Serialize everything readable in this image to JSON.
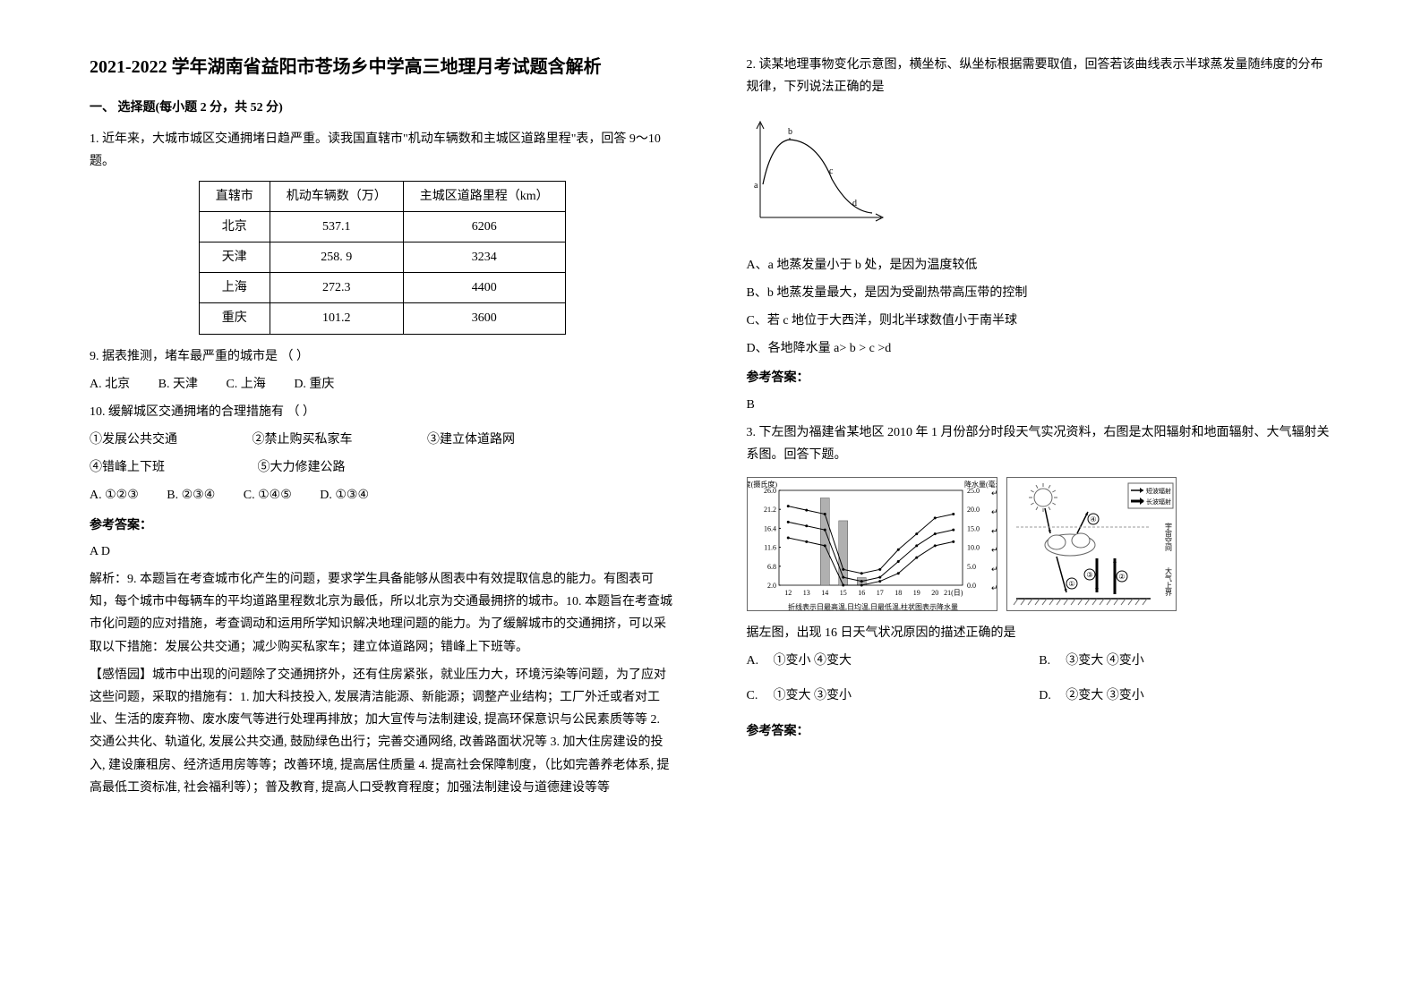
{
  "title": "2021-2022 学年湖南省益阳市苍场乡中学高三地理月考试题含解析",
  "sectionHeading": "一、 选择题(每小题 2 分，共 52 分)",
  "q1": {
    "intro": "1. 近年来，大城市城区交通拥堵日趋严重。读我国直辖市\"机动车辆数和主城区道路里程\"表，回答 9～10 题。",
    "table": {
      "headers": [
        "直辖市",
        "机动车辆数（万）",
        "主城区道路里程（km）"
      ],
      "rows": [
        [
          "北京",
          "537.1",
          "6206"
        ],
        [
          "天津",
          "258. 9",
          "3234"
        ],
        [
          "上海",
          "272.3",
          "4400"
        ],
        [
          "重庆",
          "101.2",
          "3600"
        ]
      ]
    },
    "q9": "9. 据表推测，堵车最严重的城市是            （    ）",
    "q9opts": {
      "a": "A. 北京",
      "b": "B. 天津",
      "c": "C. 上海",
      "d": "D. 重庆"
    },
    "q10": "10.  缓解城区交通拥堵的合理措施有       （     ）",
    "q10items": {
      "i1": "①发展公共交通",
      "i2": "②禁止购买私家车",
      "i3": "③建立体道路网",
      "i4": "④错峰上下班",
      "i5": "⑤大力修建公路"
    },
    "q10opts": {
      "a": "A. ①②③",
      "b": "B. ②③④",
      "c": "C. ①④⑤",
      "d": "D. ①③④"
    },
    "answerHeading": "参考答案：",
    "answer": "A D",
    "explain1": "解析：9. 本题旨在考查城市化产生的问题，要求学生具备能够从图表中有效提取信息的能力。有图表可知，每个城市中每辆车的平均道路里程数北京为最低，所以北京为交通最拥挤的城市。10. 本题旨在考查城市化问题的应对措施，考查调动和运用所学知识解决地理问题的能力。为了缓解城市的交通拥挤，可以采取以下措施：发展公共交通；减少购买私家车；建立体道路网；错峰上下班等。",
    "explain2": "【感悟园】城市中出现的问题除了交通拥挤外，还有住房紧张，就业压力大，环境污染等问题，为了应对这些问题，采取的措施有：1. 加大科技投入, 发展清洁能源、新能源；调整产业结构；工厂外迁或者对工业、生活的废弃物、废水废气等进行处理再排放；加大宣传与法制建设, 提高环保意识与公民素质等等  2. 交通公共化、轨道化, 发展公共交通, 鼓励绿色出行；完善交通网络, 改善路面状况等  3. 加大住房建设的投入, 建设廉租房、经济适用房等等；改善环境, 提高居住质量 4. 提高社会保障制度，（比如完善养老体系, 提高最低工资标准, 社会福利等）；普及教育, 提高人口受教育程度；加强法制建设与道德建设等等"
  },
  "q2": {
    "intro": "2. 读某地理事物变化示意图，横坐标、纵坐标根据需要取值，回答若该曲线表示半球蒸发量随纬度的分布规律，下列说法正确的是",
    "curve": {
      "stroke": "#000000",
      "width": 140,
      "height": 120,
      "axisColor": "#000000",
      "labels": {
        "a": "a",
        "b": "b",
        "c": "c",
        "d": "d"
      }
    },
    "optA": "A、a 地蒸发量小于 b 处，是因为温度较低",
    "optB": "B、b 地蒸发量最大，是因为受副热带高压带的控制",
    "optC": "C、若 c 地位于大西洋，则北半球数值小于南半球",
    "optD": "D、各地降水量 a> b > c >d",
    "answerHeading": "参考答案：",
    "answer": "B"
  },
  "q3": {
    "intro": "3. 下左图为福建省某地区 2010 年 1 月份部分时段天气实况资料，右图是太阳辐射和地面辐射、大气辐射关系图。回答下题。",
    "leftChart": {
      "ylabel": "温度(摄氏度)",
      "ylabel2": "降水量(毫米)",
      "yTicksLeft": [
        "26.0",
        "21.2",
        "16.4",
        "11.6",
        "6.8",
        "2.0"
      ],
      "yTicksRight": [
        "25.0",
        "20.0",
        "15.0",
        "10.0",
        "5.0",
        "0.0"
      ],
      "xTicks": [
        "12",
        "13",
        "14",
        "15",
        "16",
        "17",
        "18",
        "19",
        "20",
        "21(日)"
      ],
      "caption": "折线表示日最高温,日均温,日最低温,柱状图表示降水量",
      "highTemp": [
        22,
        21,
        20,
        6,
        5,
        6,
        11,
        15,
        19,
        20
      ],
      "avgTemp": [
        18,
        17,
        16,
        4,
        3,
        4,
        8,
        12,
        15,
        16
      ],
      "lowTemp": [
        14,
        13,
        12,
        2,
        2,
        3,
        5,
        9,
        12,
        13
      ],
      "precip": [
        0,
        0,
        23,
        17,
        2,
        0,
        0,
        0,
        0,
        0
      ],
      "lineColor": "#000000",
      "barColor": "#b0b0b0",
      "axisColor": "#000000"
    },
    "rightChart": {
      "labels": {
        "sun": "",
        "sw": "短波辐射",
        "lw": "长波辐射",
        "space": "宇宙空间",
        "atm": "大气上界"
      },
      "arrows": [
        "①",
        "②",
        "③",
        "④"
      ],
      "strokeColor": "#666666"
    },
    "qtext": "据左图，出现 16 日天气状况原因的描述正确的是",
    "optA": {
      "label": "A.",
      "text": "①变小 ④变大"
    },
    "optB": {
      "label": "B.",
      "text": "③变大 ④变小"
    },
    "optC": {
      "label": "C.",
      "text": "①变大 ③变小"
    },
    "optD": {
      "label": "D.",
      "text": "②变大 ③变小"
    },
    "answerHeading": "参考答案："
  }
}
